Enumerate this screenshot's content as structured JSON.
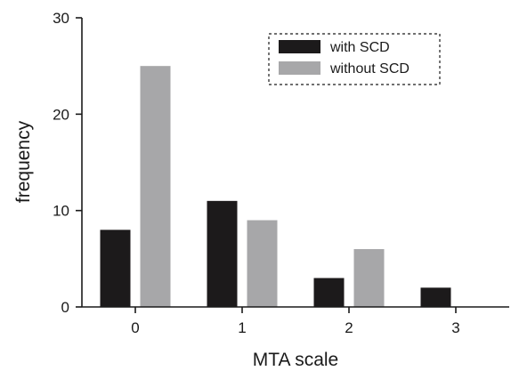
{
  "chart_data": {
    "type": "bar",
    "xlabel": "MTA scale",
    "ylabel": "frequency",
    "categories": [
      "0",
      "1",
      "2",
      "3"
    ],
    "ylim": [
      0,
      30
    ],
    "yticks": [
      "0",
      "10",
      "20",
      "30"
    ],
    "series": [
      {
        "name": "with SCD",
        "values": [
          8,
          11,
          3,
          2
        ],
        "color": "#1c1a1b"
      },
      {
        "name": "without SCD",
        "values": [
          25,
          9,
          6,
          0
        ],
        "color": "#a7a7a9"
      }
    ],
    "legend_position": "top-right",
    "grid": false
  }
}
